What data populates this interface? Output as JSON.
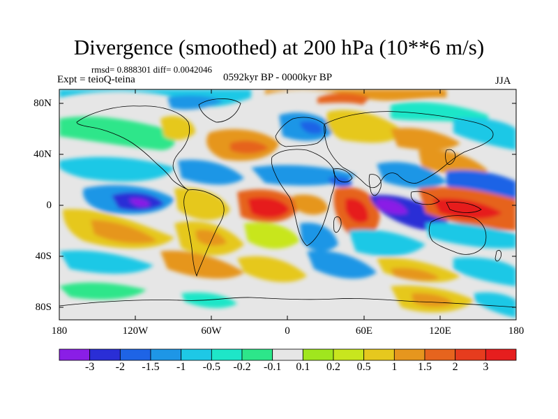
{
  "title": "Divergence (smoothed) at 200 hPa (10**6 m/s)",
  "stats": "rmsd= 0.888301 diff= 0.0042046",
  "experiment": "Expt = teioQ-teina",
  "period": "0592kyr BP - 0000kyr BP",
  "season": "JJA",
  "lat_labels": [
    "80N",
    "40N",
    "0",
    "40S",
    "80S"
  ],
  "lon_labels": [
    "180",
    "120W",
    "60W",
    "0",
    "60E",
    "120E",
    "180"
  ],
  "colorbar": {
    "labels": [
      "-3",
      "-2",
      "-1.5",
      "-1",
      "-0.5",
      "-0.2",
      "-0.1",
      "0.1",
      "0.2",
      "0.5",
      "1",
      "1.5",
      "2",
      "3"
    ],
    "colors": [
      "#8a1ee6",
      "#2a2ed6",
      "#1e64e6",
      "#1e96e6",
      "#1ec8e6",
      "#1ee6c8",
      "#2de68a",
      "#e6e6e6",
      "#a0e61e",
      "#c8e61e",
      "#e6c81e",
      "#e6961e",
      "#e6641e",
      "#e63c1e",
      "#e61e1e"
    ]
  },
  "colors": {
    "background": "#e6e6e6",
    "coast": "#000000"
  }
}
